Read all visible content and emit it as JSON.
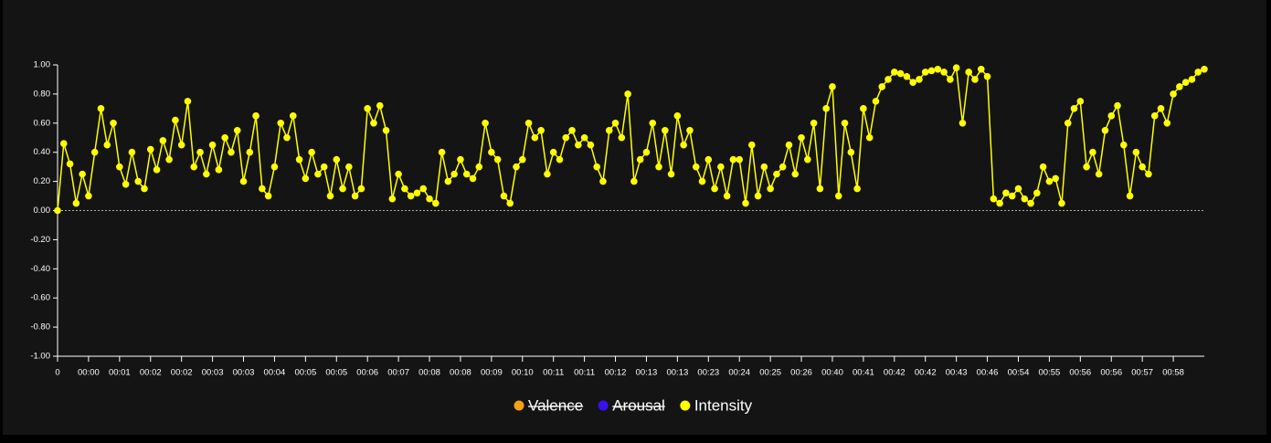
{
  "chart_data": {
    "type": "line",
    "categories": [
      "0",
      null,
      null,
      null,
      null,
      "00:00",
      null,
      null,
      null,
      null,
      "00:01",
      null,
      null,
      null,
      null,
      "00:02",
      null,
      null,
      null,
      null,
      "00:02",
      null,
      null,
      null,
      null,
      "00:03",
      null,
      null,
      null,
      null,
      "00:03",
      null,
      null,
      null,
      null,
      "00:04",
      null,
      null,
      null,
      null,
      "00:05",
      null,
      null,
      null,
      null,
      "00:05",
      null,
      null,
      null,
      null,
      "00:06",
      null,
      null,
      null,
      null,
      "00:07",
      null,
      null,
      null,
      null,
      "00:08",
      null,
      null,
      null,
      null,
      "00:08",
      null,
      null,
      null,
      null,
      "00:09",
      null,
      null,
      null,
      null,
      "00:10",
      null,
      null,
      null,
      null,
      "00:11",
      null,
      null,
      null,
      null,
      "00:11",
      null,
      null,
      null,
      null,
      "00:12",
      null,
      null,
      null,
      null,
      "00:13",
      null,
      null,
      null,
      null,
      "00:13",
      null,
      null,
      null,
      null,
      "00:23",
      null,
      null,
      null,
      null,
      "00:24",
      null,
      null,
      null,
      null,
      "00:25",
      null,
      null,
      null,
      null,
      "00:26",
      null,
      null,
      null,
      null,
      "00:40",
      null,
      null,
      null,
      null,
      "00:41",
      null,
      null,
      null,
      null,
      "00:42",
      null,
      null,
      null,
      null,
      "00:42",
      null,
      null,
      null,
      null,
      "00:43",
      null,
      null,
      null,
      null,
      "00:46",
      null,
      null,
      null,
      null,
      "00:54",
      null,
      null,
      null,
      null,
      "00:55",
      null,
      null,
      null,
      null,
      "00:56",
      null,
      null,
      null,
      null,
      "00:56",
      null,
      null,
      null,
      null,
      "00:57",
      null,
      null,
      null,
      null,
      "00:58",
      null,
      null,
      null,
      null,
      null
    ],
    "series": [
      {
        "name": "Intensity",
        "color": "#ffff00",
        "values": [
          0.0,
          0.46,
          0.32,
          0.05,
          0.25,
          0.1,
          0.4,
          0.7,
          0.45,
          0.6,
          0.3,
          0.18,
          0.4,
          0.2,
          0.15,
          0.42,
          0.28,
          0.48,
          0.35,
          0.62,
          0.45,
          0.75,
          0.3,
          0.4,
          0.25,
          0.45,
          0.28,
          0.5,
          0.4,
          0.55,
          0.2,
          0.4,
          0.65,
          0.15,
          0.1,
          0.3,
          0.6,
          0.5,
          0.65,
          0.35,
          0.22,
          0.4,
          0.25,
          0.3,
          0.1,
          0.35,
          0.15,
          0.3,
          0.1,
          0.15,
          0.7,
          0.6,
          0.72,
          0.55,
          0.08,
          0.25,
          0.15,
          0.1,
          0.12,
          0.15,
          0.08,
          0.05,
          0.4,
          0.2,
          0.25,
          0.35,
          0.25,
          0.22,
          0.3,
          0.6,
          0.4,
          0.35,
          0.1,
          0.05,
          0.3,
          0.35,
          0.6,
          0.5,
          0.55,
          0.25,
          0.4,
          0.35,
          0.5,
          0.55,
          0.45,
          0.5,
          0.45,
          0.3,
          0.2,
          0.55,
          0.6,
          0.5,
          0.8,
          0.2,
          0.35,
          0.4,
          0.6,
          0.3,
          0.55,
          0.25,
          0.65,
          0.45,
          0.55,
          0.3,
          0.2,
          0.35,
          0.15,
          0.3,
          0.1,
          0.35,
          0.35,
          0.05,
          0.45,
          0.1,
          0.3,
          0.15,
          0.25,
          0.3,
          0.45,
          0.25,
          0.5,
          0.35,
          0.6,
          0.15,
          0.7,
          0.85,
          0.1,
          0.6,
          0.4,
          0.15,
          0.7,
          0.5,
          0.75,
          0.85,
          0.9,
          0.95,
          0.94,
          0.92,
          0.88,
          0.9,
          0.95,
          0.96,
          0.97,
          0.95,
          0.9,
          0.98,
          0.6,
          0.95,
          0.9,
          0.97,
          0.92,
          0.08,
          0.05,
          0.12,
          0.1,
          0.15,
          0.08,
          0.05,
          0.12,
          0.3,
          0.2,
          0.22,
          0.05,
          0.6,
          0.7,
          0.75,
          0.3,
          0.4,
          0.25,
          0.55,
          0.65,
          0.72,
          0.45,
          0.1,
          0.4,
          0.3,
          0.25,
          0.65,
          0.7,
          0.6,
          0.8,
          0.85,
          0.88,
          0.9,
          0.95,
          0.97
        ]
      }
    ],
    "hidden_series": [
      {
        "name": "Valence",
        "color": "#f5a01a"
      },
      {
        "name": "Arousal",
        "color": "#3a10f0"
      }
    ],
    "ylim": [
      -1,
      1
    ],
    "yticks": [
      {
        "value": -1,
        "label": "-1.00"
      },
      {
        "value": -0.8,
        "label": "-0.80"
      },
      {
        "value": -0.6,
        "label": "-0.60"
      },
      {
        "value": -0.4,
        "label": "-0.40"
      },
      {
        "value": -0.2,
        "label": "-0.20"
      },
      {
        "value": 0,
        "label": "0.00"
      },
      {
        "value": 0.2,
        "label": "0.20"
      },
      {
        "value": 0.4,
        "label": "0.40"
      },
      {
        "value": 0.6,
        "label": "0.60"
      },
      {
        "value": 0.8,
        "label": "0.80"
      },
      {
        "value": 1,
        "label": "1.00"
      }
    ],
    "zero_line": true,
    "legend": "bottom"
  }
}
